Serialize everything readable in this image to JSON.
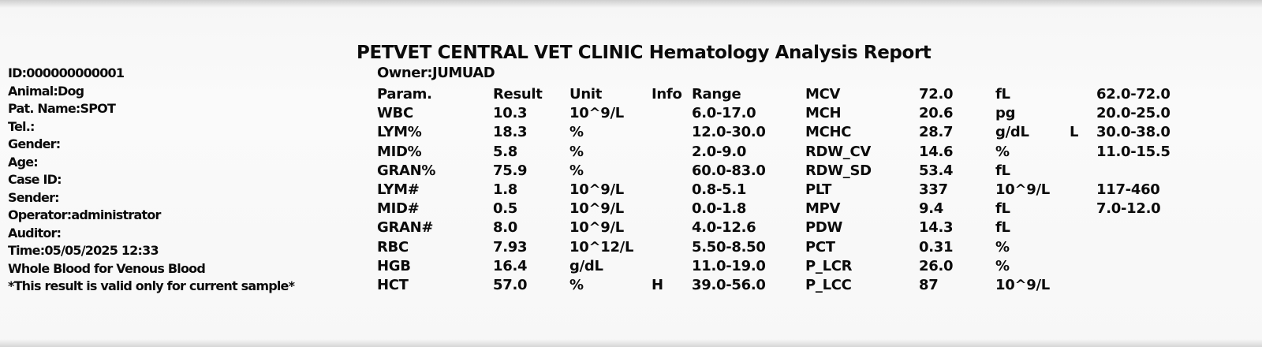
{
  "report": {
    "title": "PETVET CENTRAL VET CLINIC Hematology Analysis Report",
    "owner": "Owner:JUMUAD"
  },
  "patient_info": [
    "ID:000000000001",
    "Animal:Dog",
    "Pat. Name:SPOT",
    "Tel.:",
    "Gender:",
    "Age:",
    "Case ID:",
    "Sender:",
    "Operator:administrator",
    "Auditor:",
    "Time:05/05/2025 12:33",
    "Whole Blood for Venous Blood",
    "*This result is valid only for current sample*"
  ],
  "headers": {
    "param": "Param.",
    "result": "Result",
    "unit": "Unit",
    "info": "Info",
    "range": "Range"
  },
  "left_rows": [
    {
      "param": "WBC",
      "result": "10.3",
      "unit": "10^9/L",
      "info": "",
      "range": "6.0-17.0"
    },
    {
      "param": "LYM%",
      "result": "18.3",
      "unit": "%",
      "info": "",
      "range": "12.0-30.0"
    },
    {
      "param": "MID%",
      "result": "5.8",
      "unit": "%",
      "info": "",
      "range": "2.0-9.0"
    },
    {
      "param": "GRAN%",
      "result": "75.9",
      "unit": "%",
      "info": "",
      "range": "60.0-83.0"
    },
    {
      "param": "LYM#",
      "result": "1.8",
      "unit": "10^9/L",
      "info": "",
      "range": "0.8-5.1"
    },
    {
      "param": "MID#",
      "result": "0.5",
      "unit": "10^9/L",
      "info": "",
      "range": "0.0-1.8"
    },
    {
      "param": "GRAN#",
      "result": "8.0",
      "unit": "10^9/L",
      "info": "",
      "range": "4.0-12.6"
    },
    {
      "param": "RBC",
      "result": "7.93",
      "unit": "10^12/L",
      "info": "",
      "range": "5.50-8.50"
    },
    {
      "param": "HGB",
      "result": "16.4",
      "unit": "g/dL",
      "info": "",
      "range": "11.0-19.0"
    },
    {
      "param": "HCT",
      "result": "57.0",
      "unit": "%",
      "info": "H",
      "range": "39.0-56.0"
    }
  ],
  "right_rows": [
    {
      "param": "MCV",
      "result": "72.0",
      "unit": "fL",
      "info": "",
      "range": "62.0-72.0"
    },
    {
      "param": "MCH",
      "result": "20.6",
      "unit": "pg",
      "info": "",
      "range": "20.0-25.0"
    },
    {
      "param": "MCHC",
      "result": "28.7",
      "unit": "g/dL",
      "info": "L",
      "range": "30.0-38.0"
    },
    {
      "param": "RDW_CV",
      "result": "14.6",
      "unit": "%",
      "info": "",
      "range": "11.0-15.5"
    },
    {
      "param": "RDW_SD",
      "result": "53.4",
      "unit": "fL",
      "info": "",
      "range": ""
    },
    {
      "param": "PLT",
      "result": "337",
      "unit": "10^9/L",
      "info": "",
      "range": "117-460"
    },
    {
      "param": "MPV",
      "result": "9.4",
      "unit": "fL",
      "info": "",
      "range": "7.0-12.0"
    },
    {
      "param": "PDW",
      "result": "14.3",
      "unit": "fL",
      "info": "",
      "range": ""
    },
    {
      "param": "PCT",
      "result": "0.31",
      "unit": "%",
      "info": "",
      "range": ""
    },
    {
      "param": "P_LCR",
      "result": "26.0",
      "unit": "%",
      "info": "",
      "range": ""
    },
    {
      "param": "P_LCC",
      "result": "87",
      "unit": "10^9/L",
      "info": "",
      "range": ""
    }
  ]
}
